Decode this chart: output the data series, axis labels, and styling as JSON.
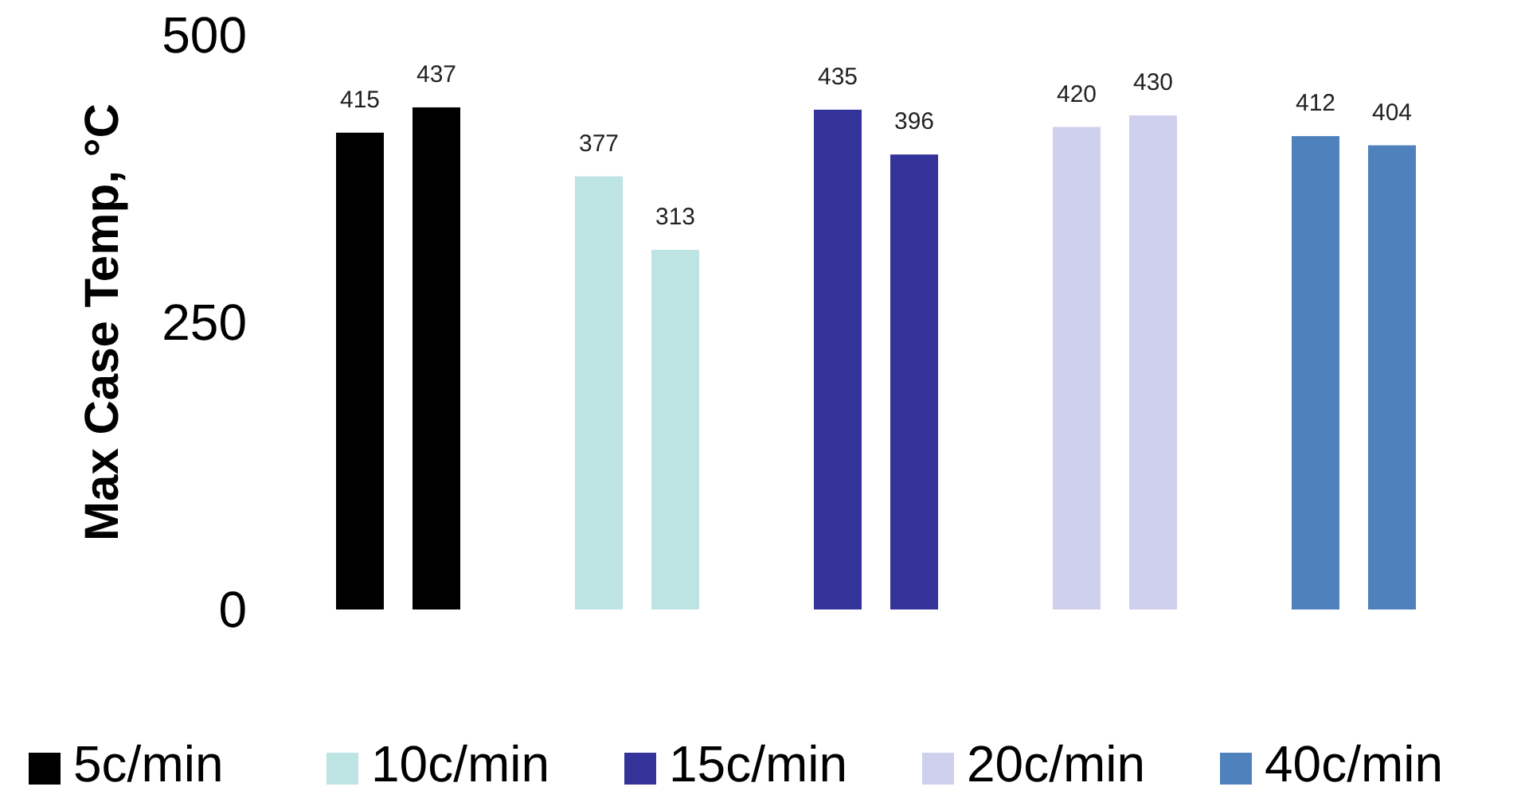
{
  "chart_data": {
    "type": "bar",
    "stacked": true,
    "ylabel": "Max Case Temp, °C",
    "categories": [
      null,
      null,
      null,
      null,
      null,
      null,
      null,
      null,
      null,
      null
    ],
    "series": [
      {
        "name": "5c/min",
        "color": "#000000",
        "values": [
          415,
          437,
          null,
          null,
          null,
          null,
          null,
          null,
          null,
          null
        ]
      },
      {
        "name": "10c/min",
        "color": "#bde3e3",
        "values": [
          null,
          null,
          377,
          313,
          null,
          null,
          null,
          null,
          null,
          null
        ]
      },
      {
        "name": "15c/min",
        "color": "#333399",
        "values": [
          null,
          null,
          null,
          null,
          435,
          396,
          null,
          null,
          null,
          null
        ]
      },
      {
        "name": "20c/min",
        "color": "#cfcfee",
        "values": [
          null,
          null,
          null,
          null,
          null,
          null,
          420,
          430,
          null,
          null
        ]
      },
      {
        "name": "40c/min",
        "color": "#4f81bd",
        "values": [
          null,
          null,
          null,
          null,
          null,
          null,
          null,
          null,
          412,
          404
        ]
      }
    ],
    "ylim": [
      0,
      500
    ],
    "yticks": [
      0,
      250,
      500
    ],
    "data_labels": true,
    "legend": "bottom",
    "grid": false
  }
}
